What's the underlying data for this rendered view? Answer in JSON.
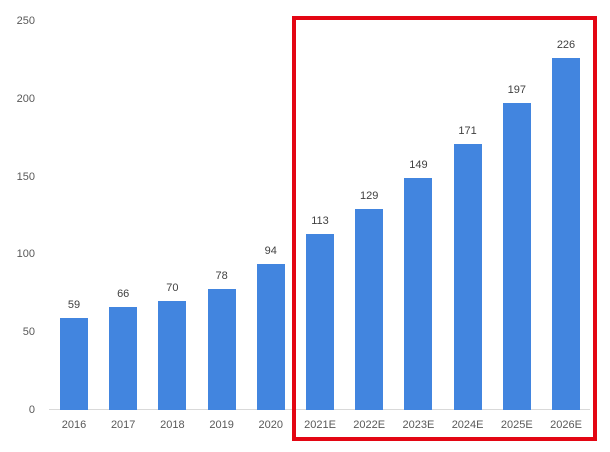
{
  "chart_data": {
    "type": "bar",
    "title": "",
    "xlabel": "",
    "ylabel": "",
    "categories": [
      "2016",
      "2017",
      "2018",
      "2019",
      "2020",
      "2021E",
      "2022E",
      "2023E",
      "2024E",
      "2025E",
      "2026E"
    ],
    "values": [
      59,
      66,
      70,
      78,
      94,
      113,
      129,
      149,
      171,
      197,
      226
    ],
    "ylim": [
      0,
      250
    ],
    "yticks": [
      "0",
      "50",
      "100",
      "150",
      "200",
      "250"
    ],
    "ytick_values": [
      0,
      50,
      100,
      150,
      200,
      250
    ],
    "data_labels": true,
    "grid": false,
    "legend": null,
    "annotations": [
      {
        "type": "rectangle",
        "label": "forecast-highlight",
        "covers": [
          "2021E",
          "2022E",
          "2023E",
          "2024E",
          "2025E",
          "2026E"
        ],
        "color": "#e30613"
      }
    ],
    "bar_color": "#4285df"
  }
}
